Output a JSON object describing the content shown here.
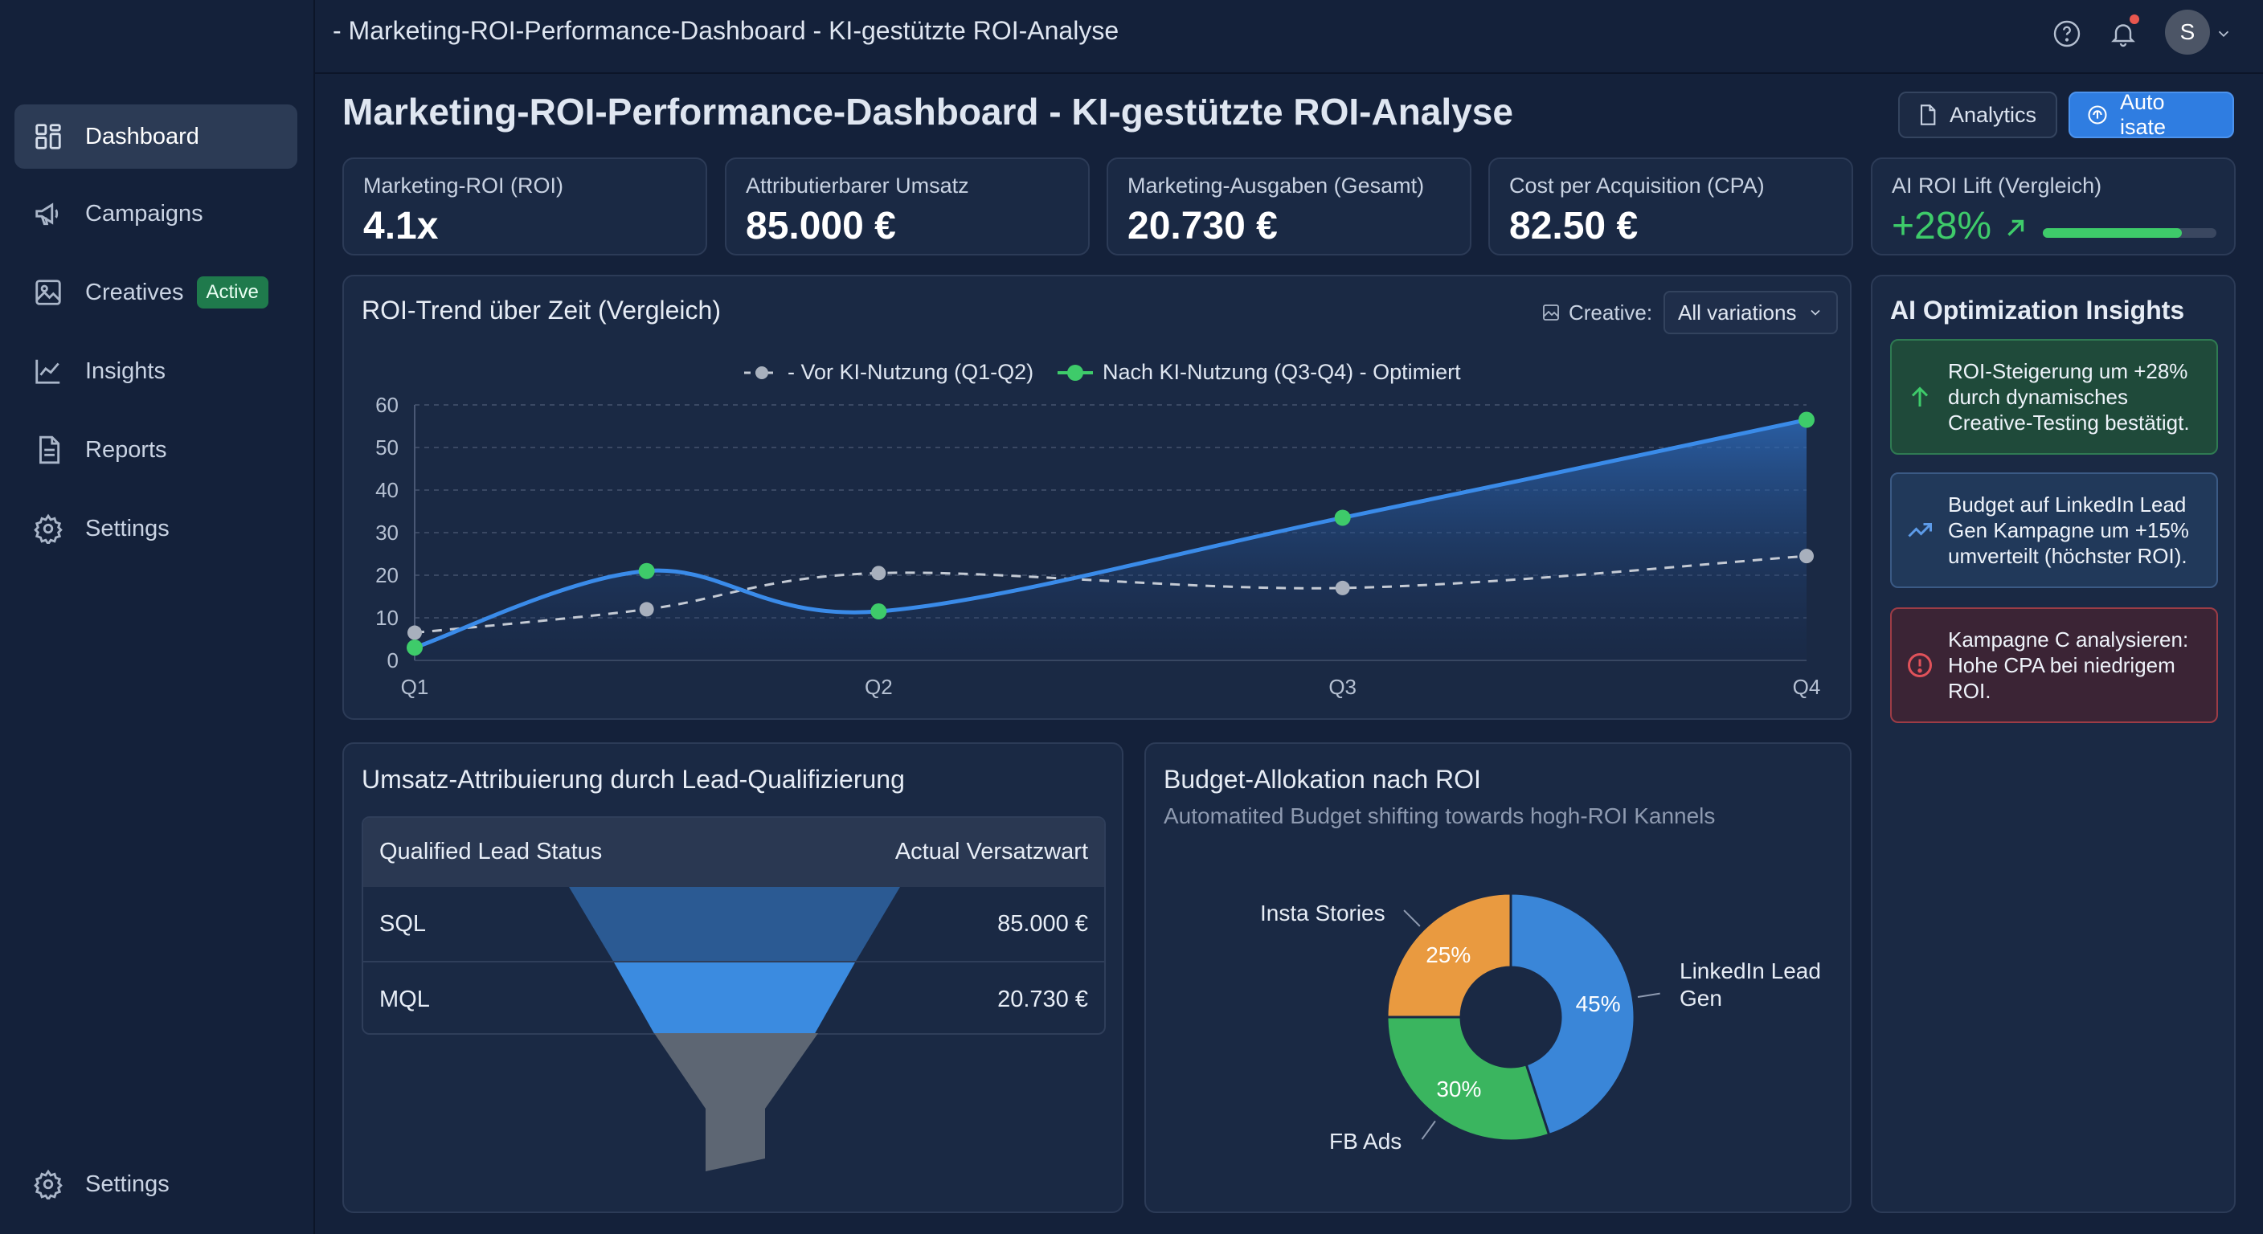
{
  "window": {
    "title": "- Marketing-ROI-Performance-Dashboard - KI-gestützte ROI-Analyse"
  },
  "sidebar": {
    "items": [
      {
        "label": "Dashboard",
        "icon": "grid-icon",
        "active": true
      },
      {
        "label": "Campaigns",
        "icon": "megaphone-icon"
      },
      {
        "label": "Creatives",
        "icon": "image-icon",
        "badge": "Active"
      },
      {
        "label": "Insights",
        "icon": "line-chart-icon"
      },
      {
        "label": "Reports",
        "icon": "document-icon"
      },
      {
        "label": "Settings",
        "icon": "gear-icon"
      }
    ],
    "footer": {
      "label": "Settings",
      "icon": "gear-icon"
    }
  },
  "topbar": {
    "avatar_initial": "S",
    "notification_dot": true
  },
  "page": {
    "title": "Marketing-ROI-Performance-Dashboard - KI-gestützte ROI-Analyse",
    "buttons": {
      "analytics": "Analytics",
      "auto": "Auto isate"
    }
  },
  "kpis": [
    {
      "label": "Marketing-ROI (ROI)",
      "value": "4.1x"
    },
    {
      "label": "Attributierbarer Umsatz",
      "value": "85.000 €"
    },
    {
      "label": "Marketing-Ausgaben (Gesamt)",
      "value": "20.730 €"
    },
    {
      "label": "Cost per Acquisition (CPA)",
      "value": "82.50 €"
    },
    {
      "label": "AI ROI Lift (Vergleich)",
      "value": "+28%",
      "progress": 0.8
    }
  ],
  "trend": {
    "title": "ROI-Trend über Zeit (Vergleich)",
    "filter_label": "Creative:",
    "filter_value": "All variations"
  },
  "chart_data": [
    {
      "type": "line",
      "title": "ROI-Trend über Zeit (Vergleich)",
      "x_ticks": [
        "Q1",
        "Q2",
        "Q3",
        "Q4"
      ],
      "ylim": [
        0,
        60
      ],
      "y_ticks": [
        0,
        10,
        20,
        30,
        40,
        50,
        60
      ],
      "grid": true,
      "legend_position": "top-center",
      "series": [
        {
          "name": "Vor KI-Nutzung (Q1-Q2)",
          "style": "dashed",
          "color": "#c4cad4",
          "x": [
            0,
            0.5,
            1,
            2,
            3
          ],
          "y": [
            6.5,
            12,
            20.5,
            17,
            24.5
          ]
        },
        {
          "name": "Nach KI-Nutzung (Q3-Q4) - Optimiert",
          "style": "solid",
          "color": "#3a8be9",
          "marker_color": "#3ecb6a",
          "x": [
            0,
            0.5,
            1,
            2,
            3
          ],
          "y": [
            3,
            21,
            11.5,
            33.5,
            56.5
          ]
        }
      ]
    },
    {
      "type": "pie",
      "title": "Budget-Allokation nach ROI",
      "subtitle": "Automatited Budget shifting towards hogh-ROI Kannels",
      "slices": [
        {
          "label": "LinkedIn Lead Gen",
          "value": 45,
          "value_label": "45%",
          "color": "#3a86d8"
        },
        {
          "label": "FB Ads",
          "value": 30,
          "value_label": "30%",
          "color": "#3ab55f"
        },
        {
          "label": "Insta Stories",
          "value": 25,
          "value_label": "25%",
          "color": "#e99a40"
        }
      ]
    }
  ],
  "funnel": {
    "title": "Umsatz-Attribuierung durch Lead-Qualifizierung",
    "headers": [
      "Qualified Lead Status",
      "Actual Versatzwart"
    ],
    "rows": [
      {
        "status": "SQL",
        "value": "85.000 €"
      },
      {
        "status": "MQL",
        "value": "20.730 €"
      }
    ]
  },
  "budget": {
    "title": "Budget-Allokation nach ROI",
    "subtitle": "Automatited Budget shifting towards hogh-ROI Kannels"
  },
  "insights": {
    "title": "AI Optimization Insights",
    "items": [
      {
        "text": "ROI-Steigerung um +28% durch dynamisches Creative-Testing bestätigt.",
        "icon": "arrow-up-icon",
        "kind": "success"
      },
      {
        "text": "Budget auf LinkedIn Lead Gen Kampagne um +15% umverteilt (höchster ROI).",
        "icon": "trend-up-icon",
        "kind": "info"
      },
      {
        "text": "Kampagne C analysieren: Hohe CPA bei niedrigem ROI.",
        "icon": "alert-circle-icon",
        "kind": "danger"
      }
    ]
  },
  "colors": {
    "background": "#14213a",
    "card": "#1a2944",
    "accent": "#2f7de1",
    "success": "#3ecb6a",
    "danger": "#c2454a"
  }
}
